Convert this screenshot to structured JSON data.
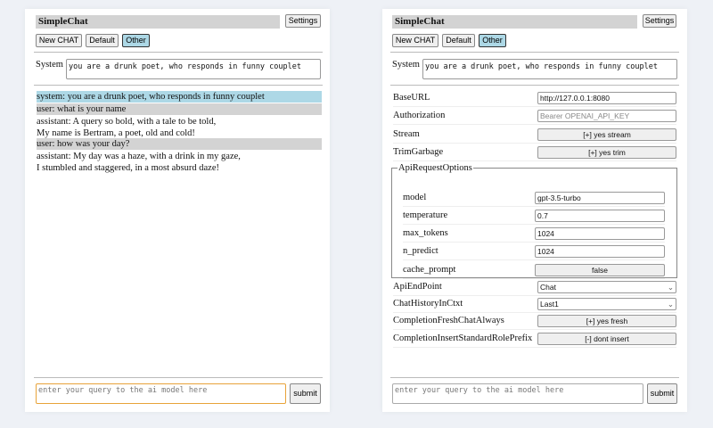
{
  "app_title": "SimpleChat",
  "settings_label": "Settings",
  "buttons": {
    "new_chat": "New CHAT",
    "default": "Default",
    "other": "Other"
  },
  "system": {
    "label": "System",
    "value": "you are a drunk poet, who responds in funny couplet"
  },
  "messages": [
    {
      "role": "system",
      "lines": [
        "system: you are a drunk poet, who responds in funny couplet"
      ]
    },
    {
      "role": "user",
      "lines": [
        "user: what is your name"
      ]
    },
    {
      "role": "assistant",
      "lines": [
        "assistant: A query so bold, with a tale to be told,",
        "My name is Bertram, a poet, old and cold!"
      ]
    },
    {
      "role": "user",
      "lines": [
        "user: how was your day?"
      ]
    },
    {
      "role": "assistant",
      "lines": [
        "assistant: My day was a haze, with a drink in my gaze,",
        "I stumbled and staggered, in a most absurd daze!"
      ]
    }
  ],
  "query": {
    "placeholder": "enter your query to the ai model here",
    "submit": "submit"
  },
  "settings": {
    "base_url": {
      "label": "BaseURL",
      "value": "http://127.0.0.1:8080"
    },
    "authorization": {
      "label": "Authorization",
      "placeholder": "Bearer OPENAI_API_KEY"
    },
    "stream": {
      "label": "Stream",
      "value": "[+] yes stream"
    },
    "trim": {
      "label": "TrimGarbage",
      "value": "[+] yes trim"
    },
    "api_options": {
      "legend": "ApiRequestOptions",
      "model": {
        "label": "model",
        "value": "gpt-3.5-turbo"
      },
      "temperature": {
        "label": "temperature",
        "value": "0.7"
      },
      "max_tokens": {
        "label": "max_tokens",
        "value": "1024"
      },
      "n_predict": {
        "label": "n_predict",
        "value": "1024"
      },
      "cache_prompt": {
        "label": "cache_prompt",
        "value": "false"
      }
    },
    "api_endpoint": {
      "label": "ApiEndPoint",
      "value": "Chat"
    },
    "chat_history": {
      "label": "ChatHistoryInCtxt",
      "value": "Last1"
    },
    "fresh": {
      "label": "CompletionFreshChatAlways",
      "value": "[+] yes fresh"
    },
    "prefix": {
      "label": "CompletionInsertStandardRolePrefix",
      "value": "[-] dont insert"
    }
  },
  "colors": {
    "selected": "#add8e6",
    "user_bg": "#d3d3d3",
    "focus": "#e8a33a"
  }
}
